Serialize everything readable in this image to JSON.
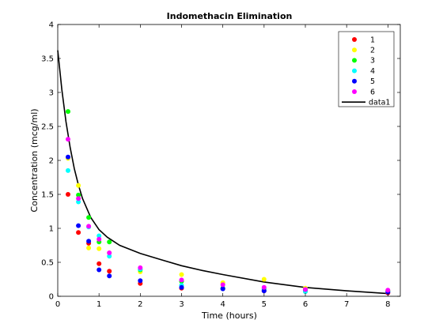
{
  "chart_data": {
    "type": "scatter",
    "title": "Indomethacin Elimination",
    "xlabel": "Time (hours)",
    "ylabel": "Concentration (mcg/ml)",
    "xlim": [
      0,
      8.3
    ],
    "ylim": [
      0,
      4
    ],
    "x_ticks": [
      "0",
      "1",
      "2",
      "3",
      "4",
      "5",
      "6",
      "7",
      "8"
    ],
    "y_ticks": [
      "0",
      "0.5",
      "1",
      "1.5",
      "2",
      "2.5",
      "3",
      "3.5",
      "4"
    ],
    "grid": false,
    "legend_position": "top-right",
    "time": [
      0.25,
      0.5,
      0.75,
      1,
      1.25,
      2,
      3,
      4,
      5,
      6,
      8
    ],
    "series": [
      {
        "name": "1",
        "color": "#ff0000",
        "values": [
          1.5,
          0.94,
          0.78,
          0.48,
          0.37,
          0.19,
          0.12,
          0.11,
          0.08,
          0.07,
          0.05
        ]
      },
      {
        "name": "2",
        "color": "#ffff00",
        "values": [
          2.03,
          1.63,
          0.71,
          0.7,
          0.64,
          0.36,
          0.32,
          0.2,
          0.25,
          0.12,
          0.08
        ]
      },
      {
        "name": "3",
        "color": "#00ff00",
        "values": [
          2.72,
          1.49,
          1.16,
          0.8,
          0.8,
          0.39,
          0.22,
          0.12,
          0.11,
          0.08,
          0.08
        ]
      },
      {
        "name": "4",
        "color": "#00ffff",
        "values": [
          1.85,
          1.39,
          1.02,
          0.89,
          0.59,
          0.4,
          0.16,
          0.11,
          0.1,
          0.07,
          0.07
        ]
      },
      {
        "name": "5",
        "color": "#0000ff",
        "values": [
          2.05,
          1.04,
          0.81,
          0.39,
          0.3,
          0.23,
          0.13,
          0.11,
          0.08,
          0.1,
          0.06
        ]
      },
      {
        "name": "6",
        "color": "#ff00ff",
        "values": [
          2.31,
          1.44,
          1.03,
          0.84,
          0.64,
          0.42,
          0.24,
          0.17,
          0.13,
          0.1,
          0.09
        ]
      }
    ],
    "fit_line": {
      "name": "data1",
      "color": "#000000",
      "x": [
        0,
        0.1,
        0.2,
        0.3,
        0.4,
        0.5,
        0.6,
        0.8,
        1.0,
        1.2,
        1.5,
        2.0,
        2.5,
        3.0,
        3.5,
        4.0,
        5.0,
        6.0,
        7.0,
        8.0
      ],
      "y": [
        3.62,
        3.04,
        2.57,
        2.19,
        1.88,
        1.64,
        1.44,
        1.16,
        0.98,
        0.87,
        0.75,
        0.63,
        0.54,
        0.45,
        0.38,
        0.32,
        0.21,
        0.13,
        0.08,
        0.04
      ]
    }
  }
}
